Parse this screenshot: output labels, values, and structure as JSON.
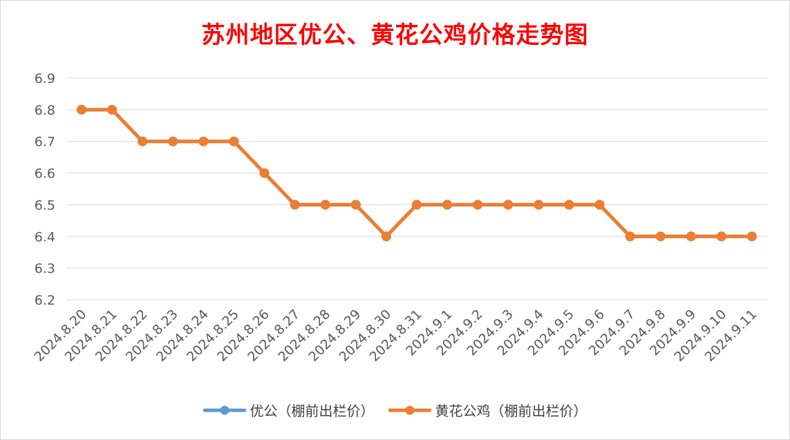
{
  "chart_data": {
    "type": "line",
    "title": "苏州地区优公、黄花公鸡价格走势图",
    "categories": [
      "2024.8.20",
      "2024.8.21",
      "2024.8.22",
      "2024.8.23",
      "2024.8.24",
      "2024.8.25",
      "2024.8.26",
      "2024.8.27",
      "2024.8.28",
      "2024.8.29",
      "2024.8.30",
      "2024.8.31",
      "2024.9.1",
      "2024.9.2",
      "2024.9.3",
      "2024.9.4",
      "2024.9.5",
      "2024.9.6",
      "2024.9.7",
      "2024.9.8",
      "2024.9.9",
      "2024.9.10",
      "2024.9.11"
    ],
    "series": [
      {
        "name": "优公（棚前出栏价）",
        "color": "#5b9bd5",
        "values": [
          6.8,
          6.8,
          6.7,
          6.7,
          6.7,
          6.7,
          6.6,
          6.5,
          6.5,
          6.5,
          6.4,
          6.5,
          6.5,
          6.5,
          6.5,
          6.5,
          6.5,
          6.5,
          6.4,
          6.4,
          6.4,
          6.4,
          6.4
        ]
      },
      {
        "name": "黄花公鸡（棚前出栏价）",
        "color": "#ed7d31",
        "values": [
          6.8,
          6.8,
          6.7,
          6.7,
          6.7,
          6.7,
          6.6,
          6.5,
          6.5,
          6.5,
          6.4,
          6.5,
          6.5,
          6.5,
          6.5,
          6.5,
          6.5,
          6.5,
          6.4,
          6.4,
          6.4,
          6.4,
          6.4
        ]
      }
    ],
    "yticks": [
      "6.2",
      "6.3",
      "6.4",
      "6.5",
      "6.6",
      "6.7",
      "6.8",
      "6.9"
    ],
    "ylim": [
      6.2,
      6.9
    ],
    "grid": true,
    "legend_position": "bottom"
  }
}
